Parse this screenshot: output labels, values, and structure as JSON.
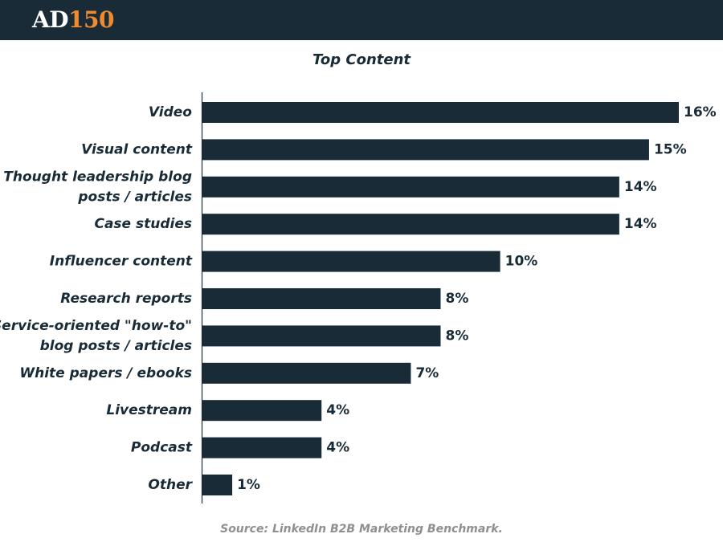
{
  "header": {
    "logo_letters": "AD",
    "logo_number": "150",
    "background_color": "#192b37",
    "accent_color": "#ef8a2e"
  },
  "chart_data": {
    "type": "bar",
    "orientation": "horizontal",
    "title": "Top Content",
    "categories": [
      "Video",
      "Visual content",
      "Thought leadership blog posts / articles",
      "Case studies",
      "Influencer content",
      "Research reports",
      "Service-oriented \"how-to\" blog posts / articles",
      "White papers / ebooks",
      "Livestream",
      "Podcast",
      "Other"
    ],
    "category_lines": [
      [
        "Video"
      ],
      [
        "Visual content"
      ],
      [
        "Thought leadership blog",
        "posts / articles"
      ],
      [
        "Case studies"
      ],
      [
        "Influencer content"
      ],
      [
        "Research reports"
      ],
      [
        "Service-oriented \"how-to\"",
        "blog posts / articles"
      ],
      [
        "White papers / ebooks"
      ],
      [
        "Livestream"
      ],
      [
        "Podcast"
      ],
      [
        "Other"
      ]
    ],
    "values": [
      16,
      15,
      14,
      14,
      10,
      8,
      8,
      7,
      4,
      4,
      1
    ],
    "value_labels": [
      "16%",
      "15%",
      "14%",
      "14%",
      "10%",
      "8%",
      "8%",
      "7%",
      "4%",
      "4%",
      "1%"
    ],
    "xlim": [
      0,
      16
    ],
    "bar_color": "#192b37",
    "grid": false,
    "legend": "none"
  },
  "footer": {
    "source": "Source: LinkedIn B2B Marketing Benchmark."
  }
}
